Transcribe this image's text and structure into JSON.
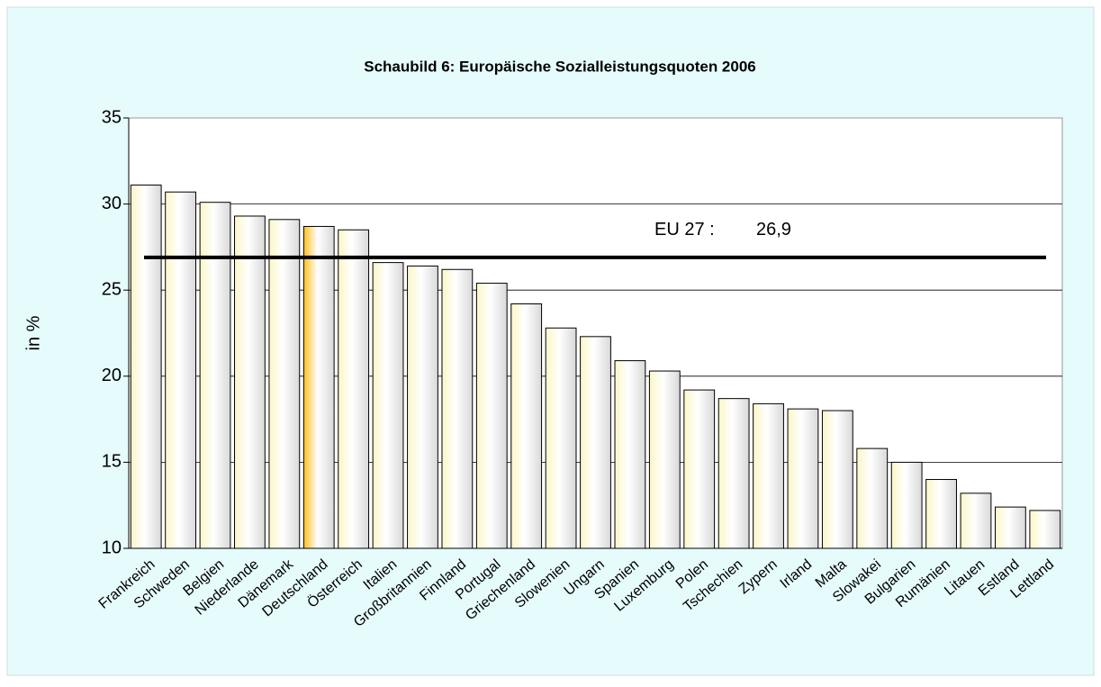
{
  "chart_data": {
    "type": "bar",
    "title": "Schaubild 6:   Europäische Sozialleistungsquoten 2006",
    "ylabel": "in %",
    "categories": [
      "Frankreich",
      "Schweden",
      "Belgien",
      "Niederlande",
      "Dänemark",
      "Deutschland",
      "Österreich",
      "Italien",
      "Großbritannien",
      "Finnland",
      "Portugal",
      "Griechenland",
      "Slowenien",
      "Ungarn",
      "Spanien",
      "Luxemburg",
      "Polen",
      "Tschechien",
      "Zypern",
      "Irland",
      "Malta",
      "Slowakei",
      "Bulgarien",
      "Rumänien",
      "Litauen",
      "Estland",
      "Lettland"
    ],
    "values": [
      31.1,
      30.7,
      30.1,
      29.3,
      29.1,
      28.7,
      28.5,
      26.6,
      26.4,
      26.2,
      25.4,
      24.2,
      22.8,
      22.3,
      20.9,
      20.3,
      19.2,
      18.7,
      18.4,
      18.1,
      18.0,
      15.8,
      15.0,
      14.0,
      13.2,
      12.4,
      12.2
    ],
    "color": "#fbf6c8",
    "highlight": "Deutschland",
    "highlight_color": "#ffbf1f",
    "reference": {
      "name": "EU 27 :",
      "value": 26.9,
      "value_label": "26,9"
    },
    "ylim": [
      10,
      35
    ],
    "yticks": [
      10,
      15,
      20,
      25,
      30,
      35
    ],
    "grid": true
  }
}
